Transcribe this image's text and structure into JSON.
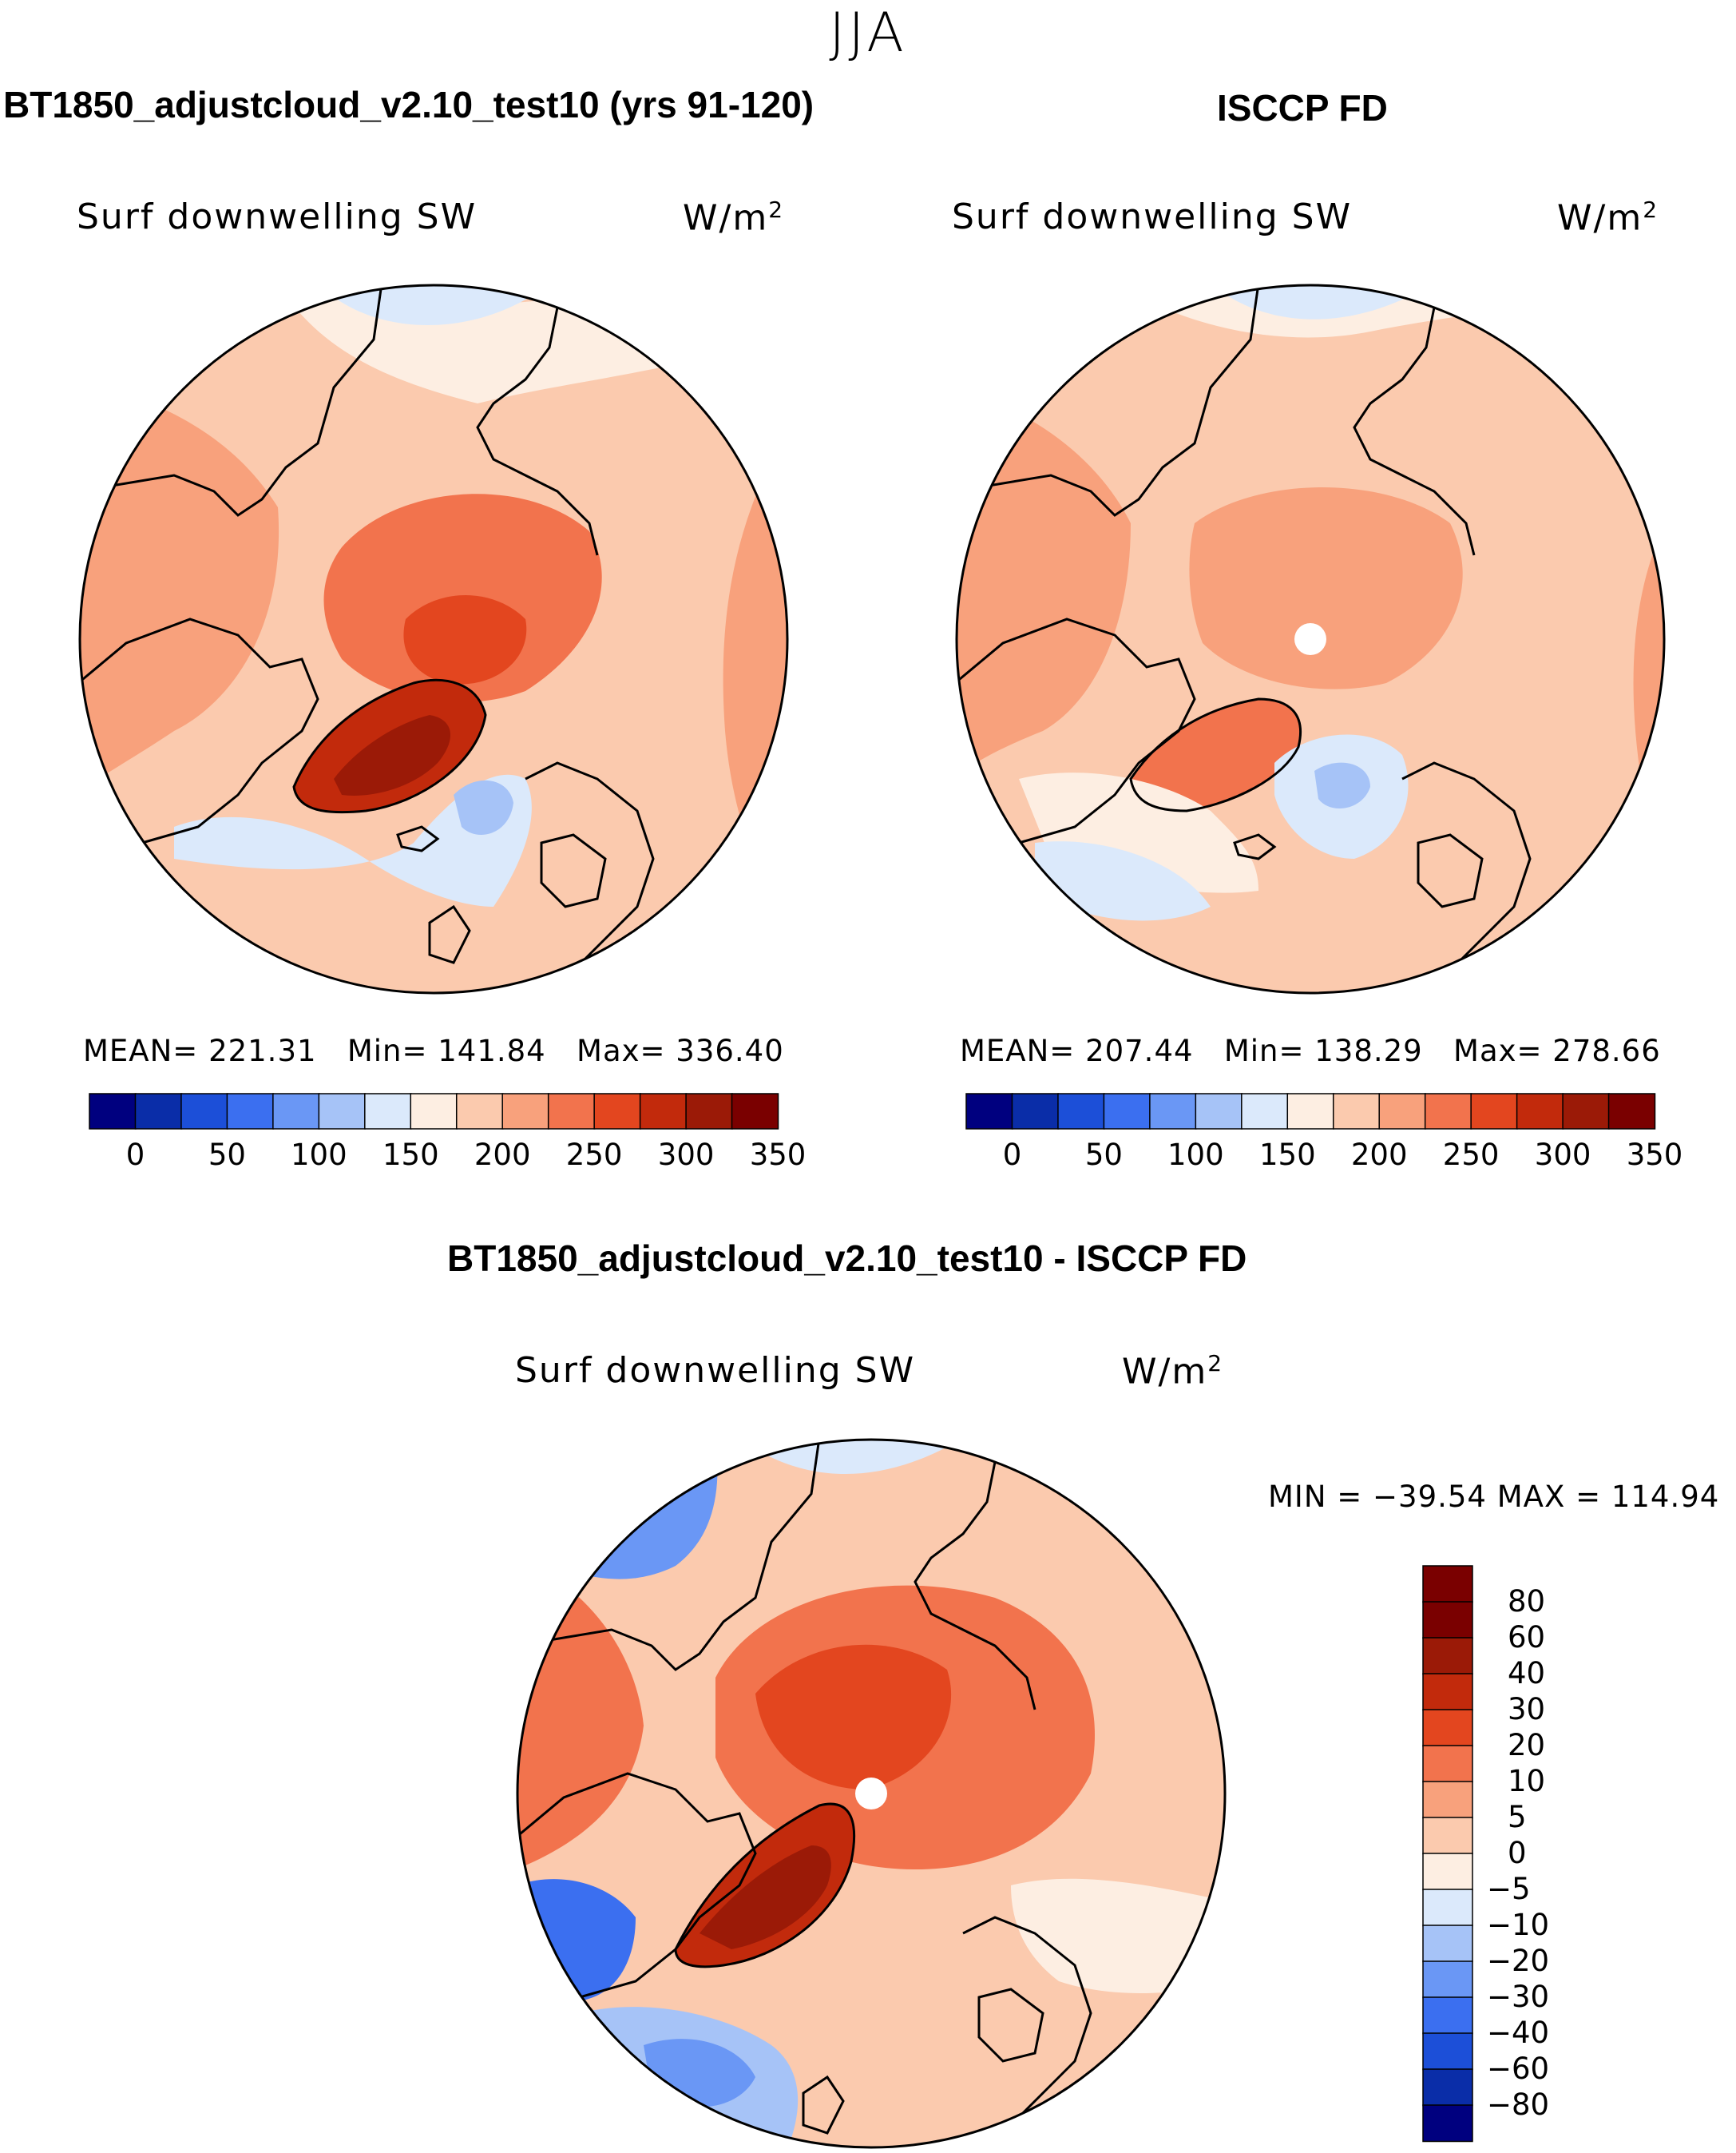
{
  "season": "JJA",
  "colors": {
    "seq": [
      "#00007f",
      "#0a2da8",
      "#1c4fd8",
      "#3b6ff0",
      "#6a97f5",
      "#a6c3f7",
      "#dbe9fb",
      "#fdeee2",
      "#fbcaae",
      "#f8a17c",
      "#f2734d",
      "#e3461f",
      "#c22a0c",
      "#9b1a07",
      "#7a0000"
    ],
    "diff": [
      "#00007f",
      "#0a2da8",
      "#1c4fd8",
      "#3b6ff0",
      "#6a97f5",
      "#a6c3f7",
      "#dbe9fb",
      "#fdeee2",
      "#fbcaae",
      "#f8a17c",
      "#f2734d",
      "#e3461f",
      "#c22a0c",
      "#9b1a07",
      "#7a0000"
    ],
    "coast": "#000000"
  },
  "panel1": {
    "title": "BT1850_adjustcloud_v2.10_test10 (yrs 91-120)",
    "variable": "Surf downwelling SW",
    "units": "W/m",
    "units_sup": "2",
    "stats": {
      "mean_label": "MEAN=",
      "mean": "221.31",
      "min_label": "Min=",
      "min": "141.84",
      "max_label": "Max=",
      "max": "336.40"
    }
  },
  "panel2": {
    "title": "ISCCP FD",
    "variable": "Surf downwelling SW",
    "units": "W/m",
    "units_sup": "2",
    "stats": {
      "mean_label": "MEAN=",
      "mean": "207.44",
      "min_label": "Min=",
      "min": "138.29",
      "max_label": "Max=",
      "max": "278.66"
    }
  },
  "panel3": {
    "title": "BT1850_adjustcloud_v2.10_test10 - ISCCP FD",
    "variable": "Surf downwelling SW",
    "units": "W/m",
    "units_sup": "2",
    "minmax": "MIN = −39.54 MAX = 114.94"
  },
  "chart_data": [
    {
      "type": "heatmap",
      "title": "BT1850_adjustcloud_v2.10_test10 (yrs 91-120)",
      "variable": "Surf downwelling SW",
      "units": "W/m2",
      "projection": "north polar stereographic",
      "colorbar_ticks": [
        0,
        50,
        100,
        150,
        200,
        250,
        300,
        350
      ],
      "n_color_levels": 15,
      "mean": 221.31,
      "min": 141.84,
      "max": 336.4
    },
    {
      "type": "heatmap",
      "title": "ISCCP FD",
      "variable": "Surf downwelling SW",
      "units": "W/m2",
      "projection": "north polar stereographic",
      "colorbar_ticks": [
        0,
        50,
        100,
        150,
        200,
        250,
        300,
        350
      ],
      "n_color_levels": 15,
      "mean": 207.44,
      "min": 138.29,
      "max": 278.66
    },
    {
      "type": "heatmap",
      "title": "BT1850_adjustcloud_v2.10_test10 - ISCCP FD",
      "variable": "Surf downwelling SW",
      "units": "W/m2",
      "projection": "north polar stereographic",
      "colorbar_ticks": [
        "80",
        "60",
        "40",
        "30",
        "20",
        "10",
        "5",
        "0",
        "−5",
        "−10",
        "−20",
        "−30",
        "−40",
        "−60",
        "−80"
      ],
      "min": -39.54,
      "max": 114.94
    }
  ]
}
